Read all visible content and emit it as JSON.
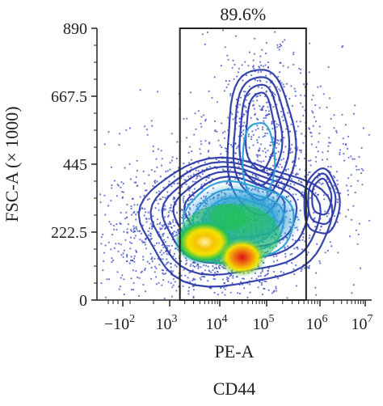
{
  "chart_data": {
    "type": "scatter",
    "subtype": "flow-cytometry-density-contour",
    "title": "",
    "xlabel": "PE-A",
    "ylabel": "FSC-A (× 1000)",
    "marker_label": "CD44",
    "x_scale": "biexponential",
    "x_ticks": [
      {
        "value": -100,
        "label": "−10",
        "exp": "2"
      },
      {
        "value": 1000,
        "label": "10",
        "exp": "3"
      },
      {
        "value": 10000,
        "label": "10",
        "exp": "4"
      },
      {
        "value": 100000,
        "label": "10",
        "exp": "5"
      },
      {
        "value": 1000000,
        "label": "10",
        "exp": "6"
      },
      {
        "value": 10000000,
        "label": "10",
        "exp": "7"
      }
    ],
    "y_ticks": [
      {
        "value": 0,
        "label": "0"
      },
      {
        "value": 222.5,
        "label": "222.5"
      },
      {
        "value": 445,
        "label": "445"
      },
      {
        "value": 667.5,
        "label": "667.5"
      },
      {
        "value": 890,
        "label": "890"
      }
    ],
    "ylim": [
      0,
      890
    ],
    "xlim": [
      -300,
      10000000
    ],
    "gate": {
      "x_range": [
        1600,
        550000
      ],
      "y_range": [
        0,
        890
      ],
      "label": "89.6%",
      "percent": 89.6
    },
    "density_peaks": [
      {
        "x": 5000,
        "y": 190,
        "level": "yellow-orange"
      },
      {
        "x": 30000,
        "y": 140,
        "level": "red"
      },
      {
        "x": 15000,
        "y": 270,
        "level": "green"
      }
    ],
    "colors": {
      "low": "#2b3aa8",
      "mid_low": "#2a9fd6",
      "mid": "#1fbf5a",
      "mid_high": "#f2e200",
      "high": "#f07a10",
      "peak": "#e0101a",
      "gate": "#222222",
      "axis": "#222222"
    },
    "grid": false
  }
}
